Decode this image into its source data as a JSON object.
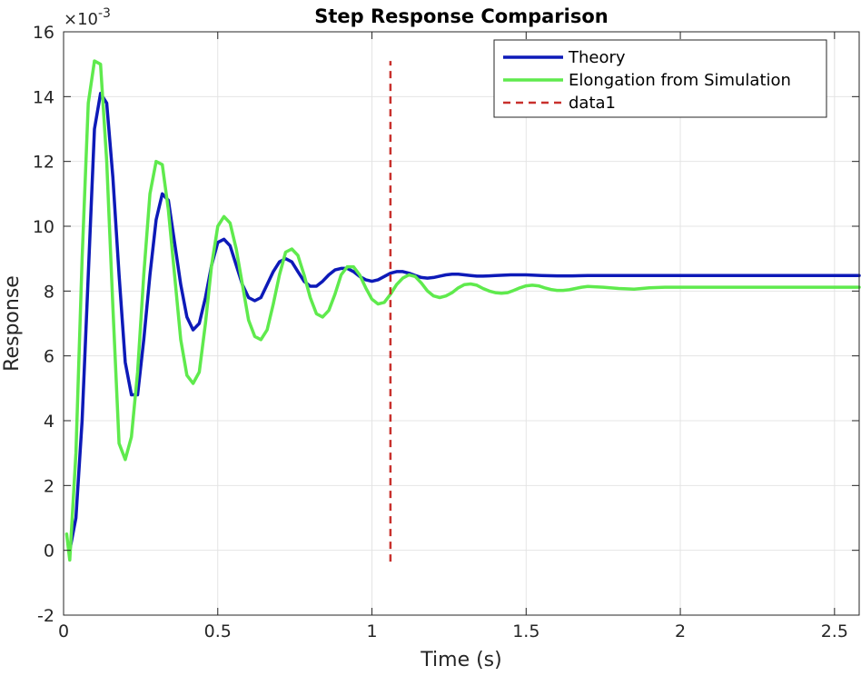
{
  "chart_data": {
    "type": "line",
    "title": "Step Response Comparison",
    "xlabel": "Time (s)",
    "ylabel": "Response",
    "xlim": [
      0,
      2.58
    ],
    "ylim": [
      -2,
      16
    ],
    "y_scale_factor_label": "×10",
    "y_scale_exponent": "-3",
    "x_ticks": [
      0,
      0.5,
      1,
      1.5,
      2,
      2.5
    ],
    "x_tick_labels": [
      "0",
      "0.5",
      "1",
      "1.5",
      "2",
      "2.5"
    ],
    "y_ticks": [
      -2,
      0,
      2,
      4,
      6,
      8,
      10,
      12,
      14,
      16
    ],
    "y_tick_labels": [
      "-2",
      "0",
      "2",
      "4",
      "6",
      "8",
      "10",
      "12",
      "14",
      "16"
    ],
    "grid": true,
    "legend_position": "top-right",
    "series": [
      {
        "name": "Theory",
        "color": "#0d1ab8",
        "style": "solid",
        "x": [
          0.02,
          0.04,
          0.06,
          0.08,
          0.1,
          0.12,
          0.14,
          0.16,
          0.18,
          0.2,
          0.22,
          0.24,
          0.26,
          0.28,
          0.3,
          0.32,
          0.34,
          0.36,
          0.38,
          0.4,
          0.42,
          0.44,
          0.46,
          0.48,
          0.5,
          0.52,
          0.54,
          0.56,
          0.58,
          0.6,
          0.62,
          0.64,
          0.66,
          0.68,
          0.7,
          0.72,
          0.74,
          0.76,
          0.78,
          0.8,
          0.82,
          0.84,
          0.86,
          0.88,
          0.9,
          0.92,
          0.94,
          0.96,
          0.98,
          1.0,
          1.02,
          1.04,
          1.06,
          1.08,
          1.1,
          1.12,
          1.14,
          1.16,
          1.18,
          1.2,
          1.22,
          1.24,
          1.26,
          1.28,
          1.3,
          1.32,
          1.34,
          1.36,
          1.38,
          1.4,
          1.45,
          1.5,
          1.55,
          1.6,
          1.65,
          1.7,
          1.75,
          1.8,
          1.85,
          1.9,
          2.0,
          2.1,
          2.2,
          2.3,
          2.4,
          2.5,
          2.58
        ],
        "y": [
          0.0,
          1.0,
          4.0,
          8.5,
          13.0,
          14.1,
          13.8,
          11.5,
          8.5,
          5.8,
          4.8,
          4.8,
          6.5,
          8.5,
          10.2,
          11.0,
          10.8,
          9.5,
          8.2,
          7.2,
          6.8,
          7.0,
          7.8,
          8.8,
          9.5,
          9.6,
          9.4,
          8.8,
          8.2,
          7.8,
          7.7,
          7.8,
          8.2,
          8.6,
          8.9,
          9.0,
          8.9,
          8.6,
          8.3,
          8.15,
          8.15,
          8.3,
          8.5,
          8.65,
          8.7,
          8.7,
          8.6,
          8.45,
          8.35,
          8.3,
          8.35,
          8.45,
          8.55,
          8.6,
          8.6,
          8.55,
          8.48,
          8.42,
          8.4,
          8.42,
          8.46,
          8.5,
          8.52,
          8.52,
          8.5,
          8.48,
          8.46,
          8.46,
          8.47,
          8.48,
          8.5,
          8.5,
          8.48,
          8.47,
          8.47,
          8.48,
          8.48,
          8.48,
          8.48,
          8.48,
          8.48,
          8.48,
          8.48,
          8.48,
          8.48,
          8.48,
          8.48
        ]
      },
      {
        "name": "Elongation from Simulation",
        "color": "#5fea4d",
        "style": "solid",
        "x": [
          0.01,
          0.02,
          0.04,
          0.06,
          0.08,
          0.1,
          0.12,
          0.14,
          0.16,
          0.18,
          0.2,
          0.22,
          0.24,
          0.26,
          0.28,
          0.3,
          0.32,
          0.34,
          0.36,
          0.38,
          0.4,
          0.42,
          0.44,
          0.46,
          0.48,
          0.5,
          0.52,
          0.54,
          0.56,
          0.58,
          0.6,
          0.62,
          0.64,
          0.66,
          0.68,
          0.7,
          0.72,
          0.74,
          0.76,
          0.78,
          0.8,
          0.82,
          0.84,
          0.86,
          0.88,
          0.9,
          0.92,
          0.94,
          0.96,
          0.98,
          1.0,
          1.02,
          1.04,
          1.06,
          1.08,
          1.1,
          1.12,
          1.14,
          1.16,
          1.18,
          1.2,
          1.22,
          1.24,
          1.26,
          1.28,
          1.3,
          1.32,
          1.34,
          1.36,
          1.38,
          1.4,
          1.42,
          1.44,
          1.46,
          1.48,
          1.5,
          1.52,
          1.54,
          1.56,
          1.58,
          1.6,
          1.62,
          1.64,
          1.66,
          1.68,
          1.7,
          1.75,
          1.8,
          1.85,
          1.9,
          1.95,
          2.0,
          2.1,
          2.2,
          2.3,
          2.4,
          2.5,
          2.58
        ],
        "y": [
          0.5,
          -0.3,
          3.0,
          9.0,
          13.8,
          15.1,
          15.0,
          12.0,
          7.5,
          3.3,
          2.8,
          3.5,
          5.5,
          8.5,
          11.0,
          12.0,
          11.9,
          10.5,
          8.5,
          6.5,
          5.4,
          5.15,
          5.5,
          7.0,
          8.8,
          10.0,
          10.3,
          10.1,
          9.3,
          8.2,
          7.1,
          6.6,
          6.5,
          6.8,
          7.6,
          8.5,
          9.2,
          9.3,
          9.1,
          8.5,
          7.8,
          7.3,
          7.2,
          7.4,
          7.9,
          8.5,
          8.75,
          8.75,
          8.5,
          8.1,
          7.75,
          7.6,
          7.65,
          7.9,
          8.2,
          8.4,
          8.5,
          8.45,
          8.25,
          8.0,
          7.85,
          7.8,
          7.85,
          7.95,
          8.1,
          8.2,
          8.22,
          8.18,
          8.08,
          8.0,
          7.95,
          7.93,
          7.95,
          8.02,
          8.1,
          8.16,
          8.18,
          8.16,
          8.1,
          8.05,
          8.02,
          8.02,
          8.04,
          8.08,
          8.12,
          8.14,
          8.12,
          8.08,
          8.06,
          8.1,
          8.12,
          8.12,
          8.12,
          8.12,
          8.12,
          8.12,
          8.12,
          8.12
        ]
      },
      {
        "name": "data1",
        "color": "#c8302c",
        "style": "dashed",
        "x": [
          1.06,
          1.06
        ],
        "y": [
          -0.35,
          15.1
        ]
      }
    ]
  }
}
